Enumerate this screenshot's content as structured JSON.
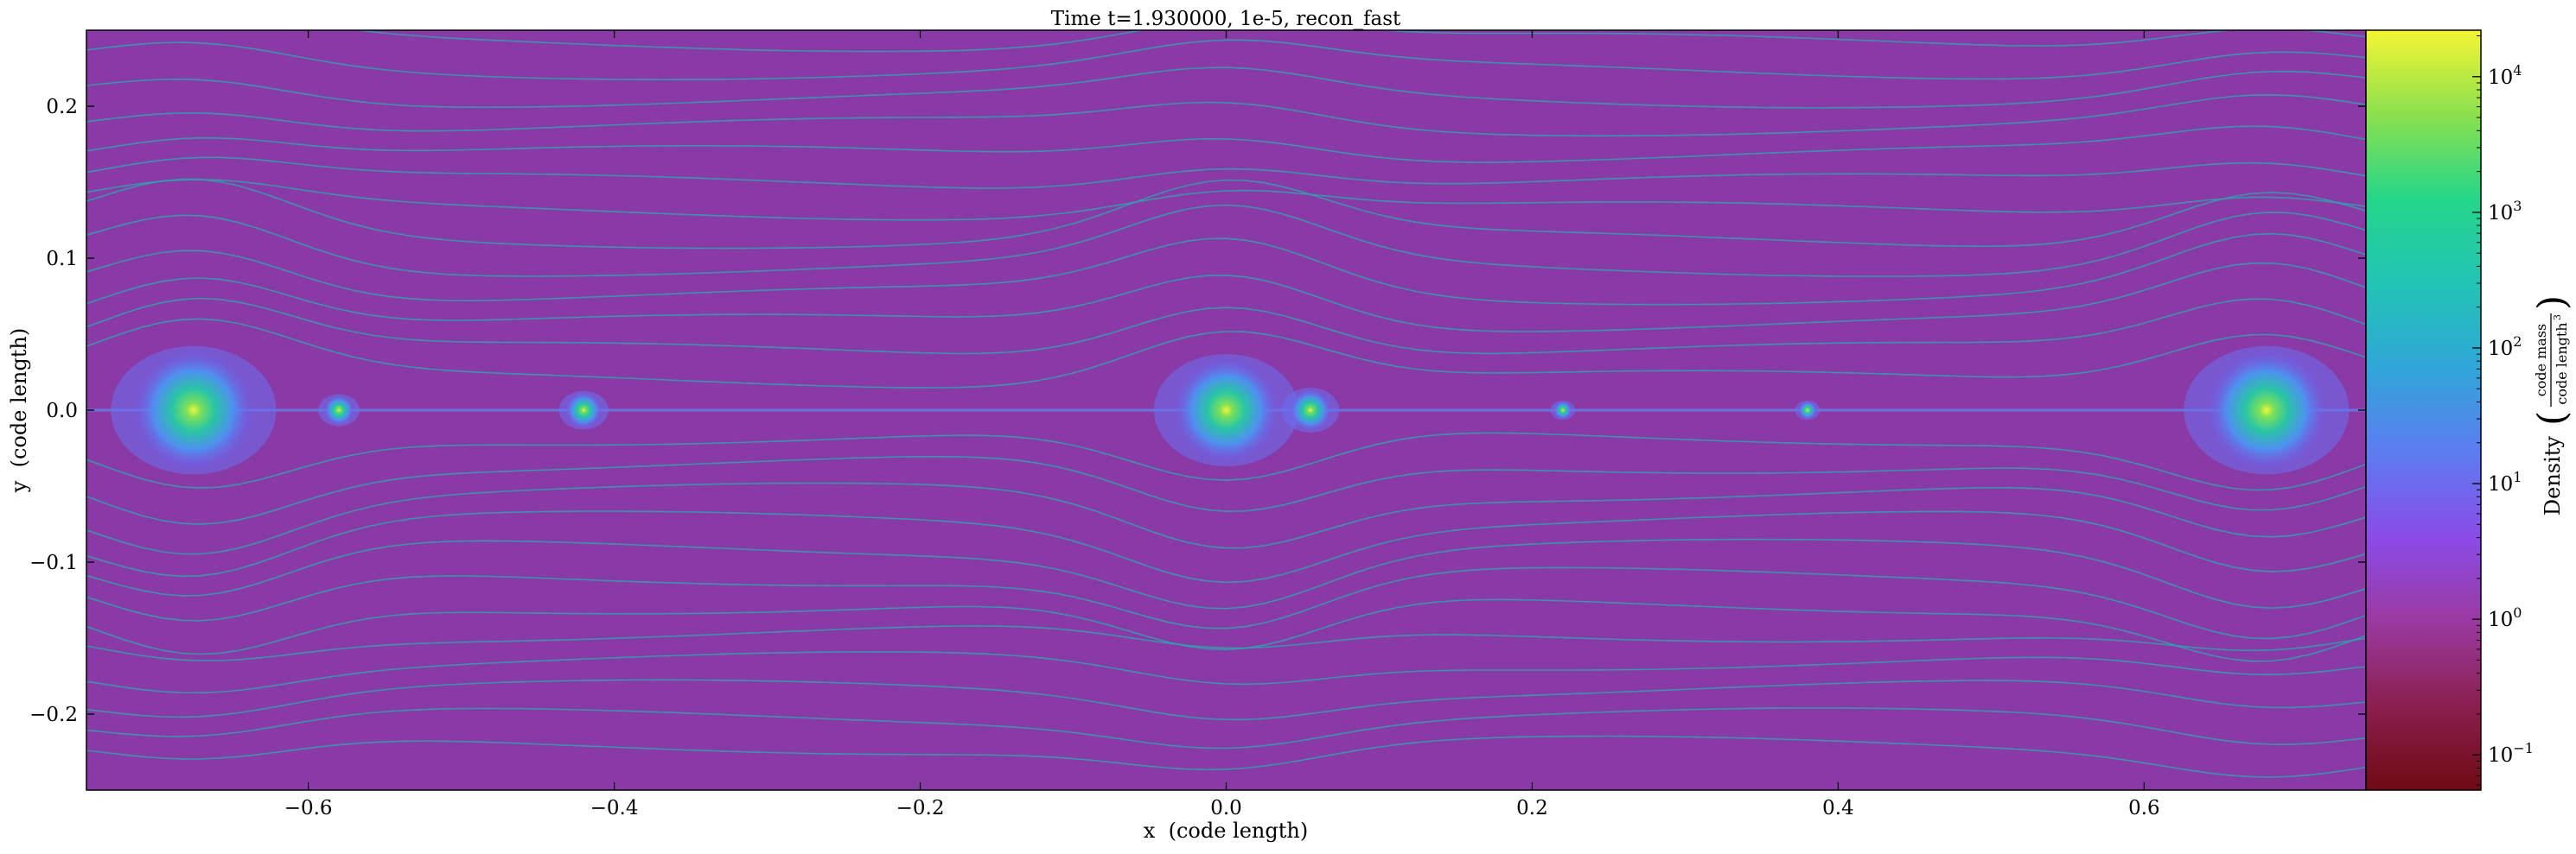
{
  "chart_data": {
    "type": "heatmap",
    "title": "Time t=1.930000, 1e-5, recon_fast",
    "xlabel": "x  (code length)",
    "ylabel": "y  (code length)",
    "xlim": [
      -0.745,
      0.745
    ],
    "ylim": [
      -0.25,
      0.25
    ],
    "xticks": [
      {
        "value": -0.6,
        "label": "−0.6"
      },
      {
        "value": -0.4,
        "label": "−0.4"
      },
      {
        "value": -0.2,
        "label": "−0.2"
      },
      {
        "value": 0.0,
        "label": "0.0"
      },
      {
        "value": 0.2,
        "label": "0.2"
      },
      {
        "value": 0.4,
        "label": "0.4"
      },
      {
        "value": 0.6,
        "label": "0.6"
      }
    ],
    "yticks": [
      {
        "value": 0.2,
        "label": "0.2"
      },
      {
        "value": 0.1,
        "label": "0.1"
      },
      {
        "value": 0.0,
        "label": "0.0"
      },
      {
        "value": -0.1,
        "label": "−0.1"
      },
      {
        "value": -0.2,
        "label": "−0.2"
      }
    ],
    "colorbar": {
      "label": "Density",
      "unit_numerator": "code mass",
      "unit_denominator": "code length",
      "unit_denominator_exponent": "3",
      "scale": "log",
      "range": [
        0.055,
        22000
      ],
      "ticks": [
        {
          "exp": -1,
          "label_base": "10",
          "label_exp": "−1"
        },
        {
          "exp": 0,
          "label_base": "10",
          "label_exp": "0"
        },
        {
          "exp": 1,
          "label_base": "10",
          "label_exp": "1"
        },
        {
          "exp": 2,
          "label_base": "10",
          "label_exp": "2"
        },
        {
          "exp": 3,
          "label_base": "10",
          "label_exp": "3"
        },
        {
          "exp": 4,
          "label_base": "10",
          "label_exp": "4"
        }
      ],
      "colors": [
        "#6e0b14",
        "#8a1f4f",
        "#9b3aa0",
        "#8a4be8",
        "#5d7cf0",
        "#30a6d8",
        "#22c4b4",
        "#25d68a",
        "#8be04e",
        "#f5f534"
      ]
    },
    "background_color": "#8a3aa6",
    "streamline_color": "#2aa7ae",
    "clumps": [
      {
        "x": -0.675,
        "y": 0.0,
        "r": 0.04
      },
      {
        "x": 0.0,
        "y": 0.0,
        "r": 0.035
      },
      {
        "x": 0.68,
        "y": 0.0,
        "r": 0.04
      },
      {
        "x": -0.42,
        "y": 0.0,
        "r": 0.012
      },
      {
        "x": -0.58,
        "y": 0.0,
        "r": 0.01
      },
      {
        "x": 0.055,
        "y": 0.0,
        "r": 0.014
      },
      {
        "x": 0.22,
        "y": 0.0,
        "r": 0.006
      },
      {
        "x": 0.38,
        "y": 0.0,
        "r": 0.006
      }
    ]
  }
}
